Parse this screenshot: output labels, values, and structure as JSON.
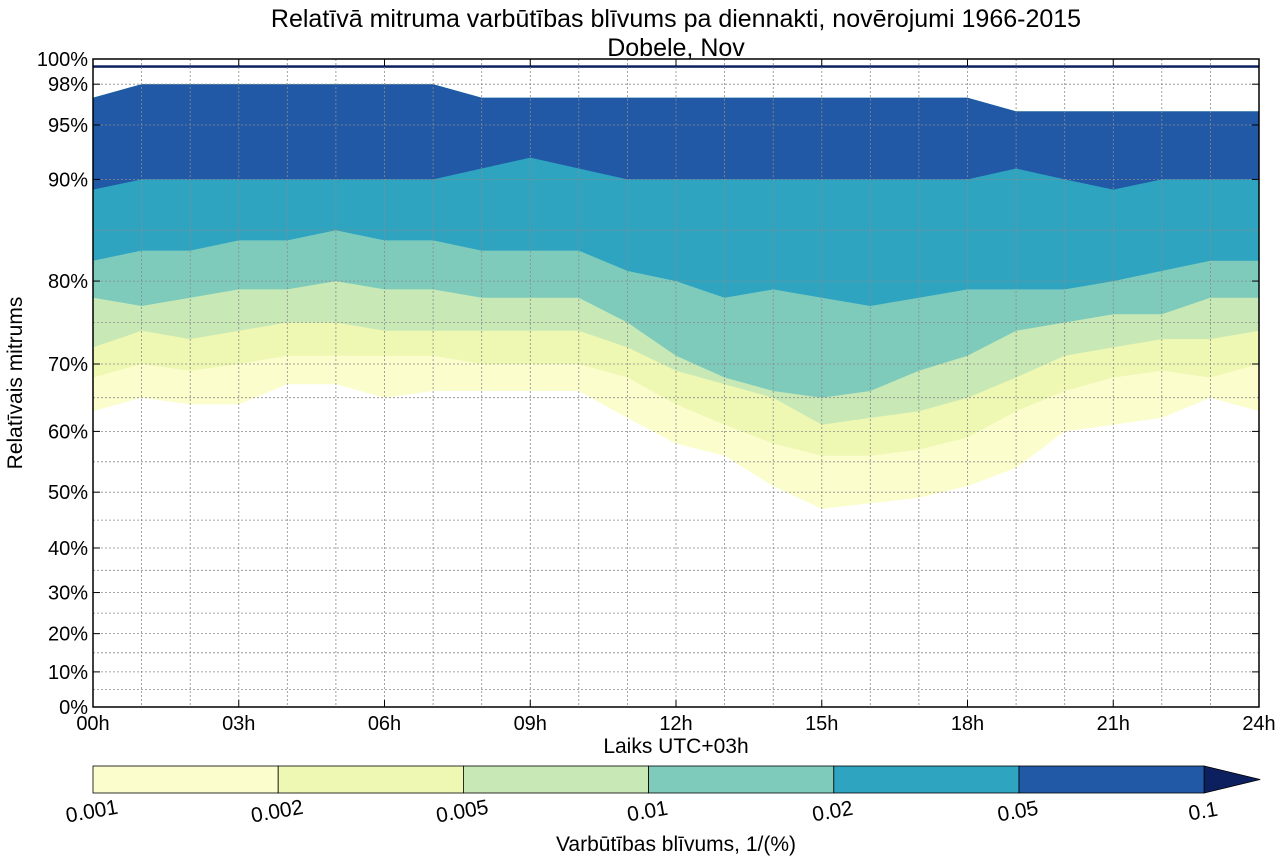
{
  "chart_data": {
    "type": "contourf",
    "title": "Relatīvā mitruma varbūtības blīvums pa diennakti, novērojumi 1966-2015",
    "subtitle": "Dobele, Nov",
    "xlabel": "Laiks UTC+03h",
    "ylabel": "Relatīvais mitrums",
    "xlim": [
      0,
      24
    ],
    "ylim": [
      0,
      100
    ],
    "x_ticks": [
      0,
      3,
      6,
      9,
      12,
      15,
      18,
      21,
      24
    ],
    "x_tick_labels": [
      "00h",
      "03h",
      "06h",
      "09h",
      "12h",
      "15h",
      "18h",
      "21h",
      "24h"
    ],
    "y_ticks": [
      0,
      10,
      20,
      30,
      40,
      50,
      60,
      70,
      80,
      90,
      95,
      98,
      100
    ],
    "y_tick_labels": [
      "0%",
      "10%",
      "20%",
      "30%",
      "40%",
      "50%",
      "60%",
      "70%",
      "80%",
      "90%",
      "95%",
      "98%",
      "100%"
    ],
    "y_scale_anchors": [
      [
        0,
        0
      ],
      [
        10,
        0.0542
      ],
      [
        20,
        0.1132
      ],
      [
        30,
        0.1766
      ],
      [
        40,
        0.2454
      ],
      [
        50,
        0.3315
      ],
      [
        60,
        0.4253
      ],
      [
        70,
        0.5293
      ],
      [
        80,
        0.6573
      ],
      [
        90,
        0.8142
      ],
      [
        95,
        0.8982
      ],
      [
        98,
        0.9611
      ],
      [
        100,
        1.0
      ]
    ],
    "grid": true,
    "grid_x": [
      0,
      1,
      2,
      3,
      4,
      5,
      6,
      7,
      8,
      9,
      10,
      11,
      12,
      13,
      14,
      15,
      16,
      17,
      18,
      19,
      20,
      21,
      22,
      23,
      24
    ],
    "grid_y": [
      0,
      5,
      10,
      15,
      20,
      25,
      30,
      35,
      40,
      45,
      50,
      55,
      60,
      65,
      70,
      75,
      80,
      85,
      90,
      95,
      98,
      100
    ],
    "levels": [
      0.001,
      0.002,
      0.005,
      0.01,
      0.02,
      0.05,
      0.1
    ],
    "level_labels": [
      "0.001",
      "0.002",
      "0.005",
      "0.01",
      "0.02",
      "0.05",
      "0.1"
    ],
    "level_colors": [
      "#fbfdcc",
      "#eef8b3",
      "#c8e9b6",
      "#7ecbbc",
      "#2ea4c1",
      "#2259a6",
      "#0c2060"
    ],
    "hours": [
      0,
      1,
      2,
      3,
      4,
      5,
      6,
      7,
      8,
      9,
      10,
      11,
      12,
      13,
      14,
      15,
      16,
      17,
      18,
      19,
      20,
      21,
      22,
      23,
      24
    ],
    "contour_boundaries": [
      {
        "level": 0.001,
        "humidity": [
          63,
          65,
          64,
          64,
          67,
          67,
          65,
          66,
          66,
          66,
          66,
          62,
          58,
          56,
          51,
          47,
          48,
          49,
          51,
          54,
          60,
          61,
          62,
          65,
          63
        ]
      },
      {
        "level": 0.002,
        "humidity": [
          68,
          70,
          69,
          70,
          71,
          71,
          71,
          71,
          70,
          70,
          70,
          68,
          64,
          61,
          58,
          56,
          56,
          57,
          59,
          63,
          66,
          68,
          69,
          68,
          70
        ]
      },
      {
        "level": 0.005,
        "humidity": [
          72,
          74,
          73,
          74,
          75,
          75,
          74,
          74,
          74,
          74,
          74,
          72,
          69,
          67,
          65,
          61,
          62,
          63,
          65,
          68,
          71,
          72,
          73,
          73,
          74
        ]
      },
      {
        "level": 0.01,
        "humidity": [
          78,
          77,
          78,
          79,
          79,
          80,
          79,
          79,
          78,
          78,
          78,
          75,
          71,
          68,
          66,
          65,
          66,
          69,
          71,
          74,
          75,
          76,
          76,
          78,
          78
        ]
      },
      {
        "level": 0.02,
        "humidity": [
          82,
          83,
          83,
          84,
          84,
          85,
          84,
          84,
          83,
          83,
          83,
          81,
          80,
          78,
          79,
          78,
          77,
          78,
          79,
          79,
          79,
          80,
          81,
          82,
          82
        ]
      },
      {
        "level": 0.05,
        "upper_humidity": [
          97,
          98,
          98,
          98,
          98,
          98,
          98,
          98,
          97,
          97,
          97,
          97,
          97,
          97,
          97,
          97,
          97,
          97,
          97,
          96,
          96,
          96,
          96,
          96,
          96
        ],
        "lower_humidity": [
          89,
          90,
          90,
          90,
          90,
          90,
          90,
          90,
          91,
          92,
          91,
          90,
          90,
          90,
          90,
          90,
          90,
          90,
          90,
          91,
          90,
          89,
          90,
          90,
          90
        ]
      },
      {
        "level": 0.1,
        "band_humidity": [
          99.3,
          99.5
        ]
      }
    ],
    "colorbar": {
      "orientation": "horizontal",
      "extend": "max",
      "label": "Varbūtības blīvums, 1/(%)"
    }
  }
}
